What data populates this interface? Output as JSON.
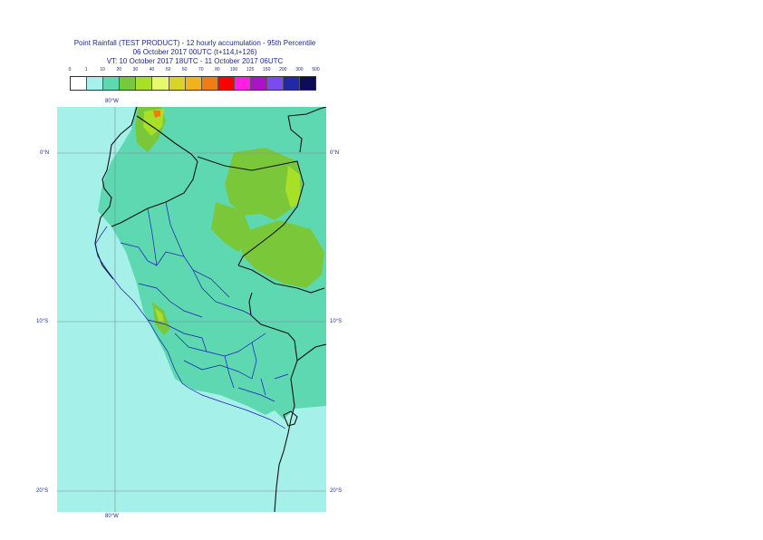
{
  "title": {
    "line1": "Point Rainfall (TEST PRODUCT) - 12 hourly accumulation - 95th Percentile",
    "line2": "06 October 2017 00UTC (t+114,t+126)",
    "line3": "VT: 10 October 2017 18UTC - 11 October 2017 06UTC"
  },
  "legend": {
    "labels": [
      "0",
      "1",
      "10",
      "20",
      "30",
      "40",
      "50",
      "60",
      "70",
      "80",
      "100",
      "125",
      "150",
      "200",
      "300",
      "500"
    ],
    "colors": [
      "#ffffff",
      "#a8f0ec",
      "#5ed8b0",
      "#78c83c",
      "#a8e028",
      "#e6f86e",
      "#d8d428",
      "#f0b41a",
      "#f07c14",
      "#ff0000",
      "#ff1ee6",
      "#aa14c8",
      "#7a4cf0",
      "#2428a8",
      "#0c0c5a"
    ]
  },
  "axes": {
    "lon_top": "80°W",
    "lon_bottom": "80°W",
    "lat_left": [
      "0°N",
      "10°S",
      "20°S"
    ],
    "lat_right": [
      "0°N",
      "10°S",
      "20°S"
    ]
  },
  "map_colors": {
    "ocean": "#a6f0ea",
    "moderate": "#5ed8b0",
    "heavy": "#7ac83a",
    "very_heavy": "#a8e028",
    "intense": "#f07c14",
    "grid": "#7d8a96",
    "border": "#111111",
    "admin": "#1a1ab4"
  }
}
